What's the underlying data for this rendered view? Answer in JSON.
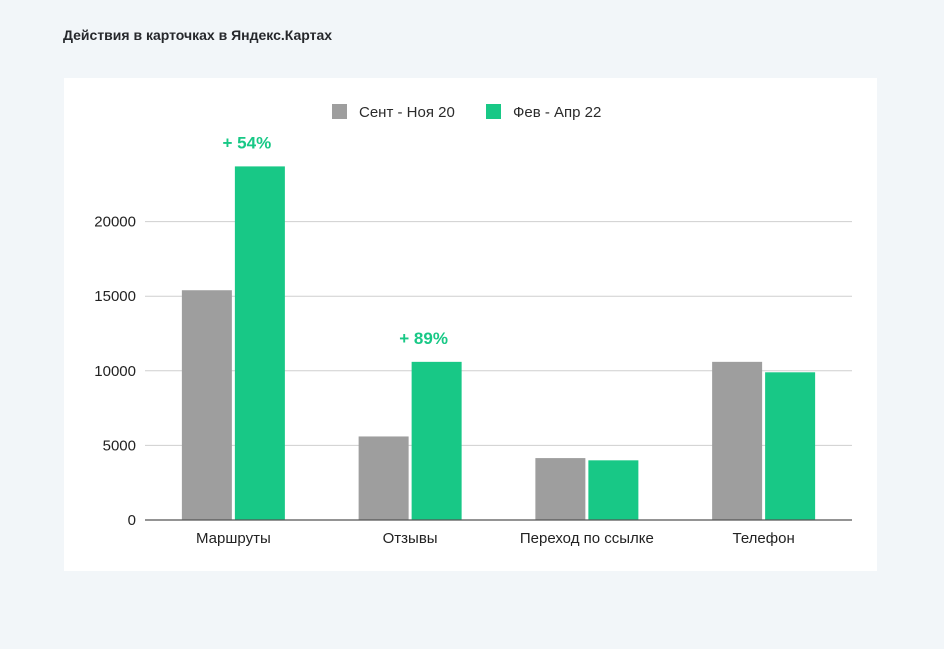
{
  "page": {
    "title": "Действия в карточках в Яндекс.Картах"
  },
  "colors": {
    "background": "#f2f6f9",
    "card": "#ffffff",
    "series_1": "#9e9e9e",
    "series_2": "#18c886",
    "gridline": "#cfcfcf",
    "axis": "#555555",
    "annotation": "#18c886"
  },
  "chart_data": {
    "type": "bar",
    "title": "",
    "xlabel": "",
    "ylabel": "",
    "categories": [
      "Маршруты",
      "Отзывы",
      "Переход по ссылке",
      "Телефон"
    ],
    "series": [
      {
        "name": "Сент - Ноя 20",
        "values": [
          15400,
          5600,
          4150,
          10600
        ]
      },
      {
        "name": "Фев - Апр 22",
        "values": [
          23700,
          10600,
          4000,
          9900
        ]
      }
    ],
    "ylim": [
      0,
      25000
    ],
    "yticks": [
      0,
      5000,
      10000,
      15000,
      20000
    ],
    "grid": true,
    "legend_position": "top-center",
    "annotations": [
      {
        "category": "Маршруты",
        "text": "+ 54%"
      },
      {
        "category": "Отзывы",
        "text": "+ 89%"
      }
    ]
  }
}
